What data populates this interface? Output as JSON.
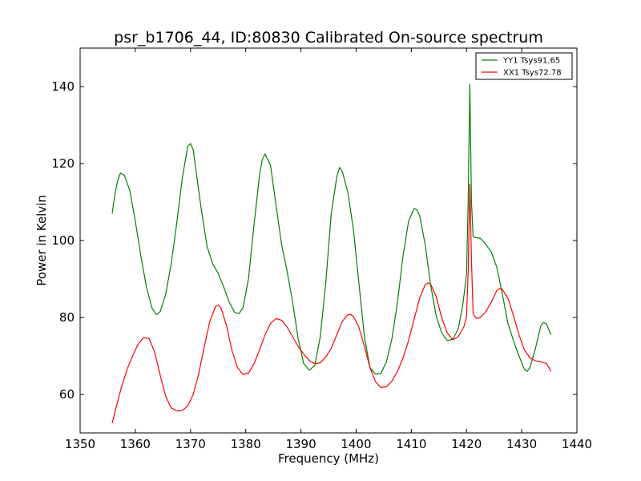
{
  "chart_data": {
    "type": "line",
    "title": "psr_b1706_44, ID:80830 Calibrated On-source spectrum",
    "xlabel": "Frequency (MHz)",
    "ylabel": "Power in Kelvin",
    "xlim": [
      1350,
      1440
    ],
    "ylim": [
      50,
      150
    ],
    "xticks": [
      1350,
      1360,
      1370,
      1380,
      1390,
      1400,
      1410,
      1420,
      1430,
      1440
    ],
    "yticks": [
      60,
      80,
      100,
      120,
      140
    ],
    "grid": false,
    "legend_position": "top-right",
    "series": [
      {
        "name": "YY1 Tsys91.65",
        "color": "#008000",
        "x": [
          1355.8,
          1356.3,
          1356.8,
          1357.3,
          1358.0,
          1359.0,
          1360.0,
          1361.0,
          1362.0,
          1363.0,
          1363.8,
          1364.5,
          1365.5,
          1366.5,
          1367.5,
          1368.5,
          1369.5,
          1370.0,
          1370.5,
          1371.0,
          1372.0,
          1373.0,
          1374.0,
          1375.0,
          1376.0,
          1377.0,
          1378.0,
          1378.8,
          1379.5,
          1380.5,
          1381.5,
          1382.5,
          1383.0,
          1383.5,
          1384.5,
          1385.5,
          1386.5,
          1387.5,
          1388.5,
          1389.5,
          1390.5,
          1391.5,
          1392.5,
          1393.5,
          1394.5,
          1395.5,
          1396.5,
          1397.0,
          1397.5,
          1398.5,
          1399.5,
          1400.5,
          1401.5,
          1402.5,
          1403.5,
          1404.5,
          1405.5,
          1406.5,
          1407.5,
          1408.5,
          1409.5,
          1410.5,
          1411.0,
          1411.5,
          1412.5,
          1413.5,
          1414.5,
          1415.5,
          1416.5,
          1417.5,
          1418.5,
          1419.3,
          1420.0,
          1420.3,
          1420.6,
          1420.9,
          1421.2,
          1421.5,
          1422.5,
          1423.5,
          1424.5,
          1425.5,
          1426.5,
          1427.5,
          1428.5,
          1429.5,
          1430.5,
          1431.0,
          1431.5,
          1432.5,
          1433.5,
          1434.0,
          1434.5,
          1435.3
        ],
        "y": [
          107.0,
          112.0,
          115.5,
          117.5,
          117.0,
          113.0,
          105.0,
          96.0,
          88.0,
          82.5,
          80.7,
          81.5,
          86.0,
          94.0,
          104.5,
          116.0,
          124.5,
          125.2,
          123.5,
          118.0,
          107.5,
          98.5,
          94.0,
          91.5,
          88.0,
          84.0,
          81.3,
          81.0,
          82.5,
          90.0,
          104.0,
          117.0,
          121.0,
          122.5,
          119.5,
          109.0,
          99.0,
          92.0,
          84.0,
          74.5,
          68.0,
          66.3,
          67.5,
          75.0,
          89.0,
          107.0,
          116.5,
          119.0,
          118.0,
          112.5,
          103.0,
          89.0,
          75.0,
          67.0,
          65.3,
          65.5,
          68.5,
          74.5,
          84.0,
          96.0,
          105.0,
          108.3,
          108.0,
          106.5,
          99.0,
          88.5,
          80.5,
          76.0,
          74.0,
          74.3,
          77.0,
          83.0,
          91.0,
          110.0,
          140.5,
          110.0,
          101.0,
          100.8,
          100.6,
          99.0,
          97.0,
          93.0,
          86.0,
          78.5,
          74.0,
          70.0,
          66.5,
          66.0,
          67.0,
          72.0,
          78.0,
          78.7,
          78.3,
          75.5
        ]
      },
      {
        "name": "XX1 Tsys72.78",
        "color": "#ff0000",
        "x": [
          1355.8,
          1356.5,
          1357.5,
          1358.5,
          1359.5,
          1360.5,
          1361.5,
          1362.5,
          1363.5,
          1364.5,
          1365.5,
          1366.5,
          1367.5,
          1368.5,
          1369.5,
          1370.5,
          1371.5,
          1372.5,
          1373.5,
          1374.5,
          1375.0,
          1375.5,
          1376.5,
          1377.5,
          1378.5,
          1379.5,
          1380.5,
          1381.5,
          1382.5,
          1383.5,
          1384.5,
          1385.5,
          1386.5,
          1387.5,
          1388.5,
          1389.5,
          1390.5,
          1391.5,
          1392.5,
          1393.5,
          1394.5,
          1395.5,
          1396.5,
          1397.5,
          1398.5,
          1399.0,
          1399.5,
          1400.5,
          1401.5,
          1402.5,
          1403.5,
          1404.5,
          1405.5,
          1406.5,
          1407.5,
          1408.5,
          1409.5,
          1410.5,
          1411.5,
          1412.5,
          1413.0,
          1413.5,
          1414.5,
          1415.5,
          1416.5,
          1417.5,
          1418.5,
          1419.5,
          1420.0,
          1420.3,
          1420.6,
          1420.9,
          1421.2,
          1421.8,
          1422.5,
          1423.5,
          1424.5,
          1425.5,
          1426.0,
          1426.5,
          1427.5,
          1428.5,
          1429.5,
          1430.5,
          1431.5,
          1432.5,
          1433.5,
          1434.5,
          1435.3
        ],
        "y": [
          52.5,
          56.5,
          62.0,
          66.5,
          70.0,
          73.0,
          74.8,
          74.5,
          71.0,
          65.0,
          59.5,
          56.5,
          55.7,
          55.8,
          57.0,
          60.0,
          65.5,
          72.5,
          79.0,
          82.8,
          83.2,
          82.5,
          78.0,
          71.5,
          67.0,
          65.2,
          65.5,
          68.0,
          71.5,
          75.5,
          78.5,
          79.7,
          79.3,
          77.5,
          75.0,
          72.5,
          70.5,
          68.8,
          68.0,
          68.2,
          69.7,
          72.0,
          75.5,
          79.0,
          80.7,
          80.8,
          80.3,
          77.5,
          72.5,
          67.0,
          63.3,
          61.8,
          62.0,
          63.5,
          66.0,
          69.5,
          74.0,
          79.5,
          85.0,
          88.5,
          89.0,
          88.7,
          85.5,
          80.0,
          76.0,
          74.2,
          75.0,
          77.5,
          80.0,
          92.0,
          114.5,
          95.0,
          81.0,
          79.7,
          80.0,
          81.5,
          84.0,
          87.0,
          87.5,
          87.3,
          85.0,
          80.5,
          75.5,
          71.5,
          69.5,
          68.7,
          68.5,
          68.0,
          66.0
        ]
      }
    ]
  }
}
